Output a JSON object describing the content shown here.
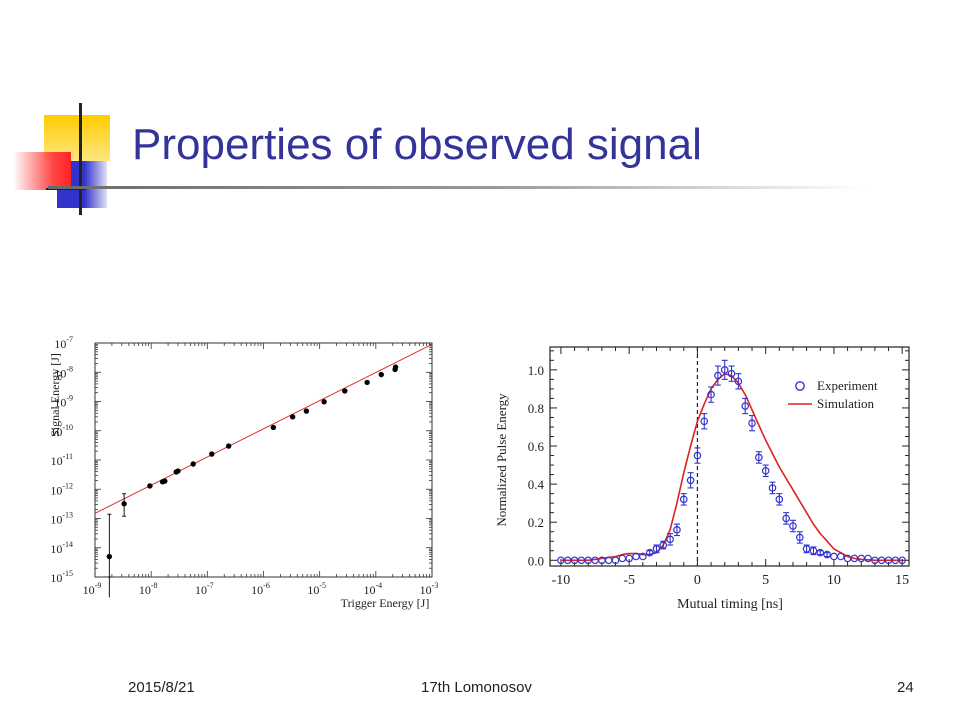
{
  "slide": {
    "title": "Properties of observed signal",
    "footer": {
      "date": "2015/8/21",
      "event": "17th Lomonosov",
      "page": "24"
    },
    "colors": {
      "title": "#333399",
      "deco_yellow": "#ffcc00",
      "deco_blue": "#3333cc",
      "deco_red": "#ff3333"
    }
  },
  "chart_data": [
    {
      "type": "scatter",
      "xlabel": "Trigger Energy [J]",
      "ylabel": "Signal Energy [J]",
      "xscale": "log",
      "yscale": "log",
      "xlim": [
        1e-09,
        0.001
      ],
      "ylim": [
        1e-15,
        1e-07
      ],
      "x_tick_labels": [
        "10-9",
        "10-8",
        "10-7",
        "10-6",
        "10-5",
        "10-4",
        "10-3"
      ],
      "y_tick_labels": [
        "10-15",
        "10-14",
        "10-13",
        "10-12",
        "10-11",
        "10-10",
        "10-9",
        "10-8",
        "10-7"
      ],
      "series": [
        {
          "kind": "points",
          "color": "#000000",
          "points": [
            {
              "x": 1.8e-09,
              "y": 5e-15,
              "y_err_low": 2e-16,
              "y_err_high": 1.4e-13
            },
            {
              "x": 3.3e-09,
              "y": 3.2e-13,
              "y_err_low": 1.2e-13,
              "y_err_high": 7e-13
            },
            {
              "x": 9.5e-09,
              "y": 1.3e-12
            },
            {
              "x": 1.6e-08,
              "y": 1.8e-12
            },
            {
              "x": 1.75e-08,
              "y": 1.9e-12
            },
            {
              "x": 2.8e-08,
              "y": 3.9e-12
            },
            {
              "x": 3e-08,
              "y": 4.2e-12
            },
            {
              "x": 5.6e-08,
              "y": 7.3e-12
            },
            {
              "x": 1.2e-07,
              "y": 1.6e-11
            },
            {
              "x": 2.4e-07,
              "y": 3e-11
            },
            {
              "x": 1.5e-06,
              "y": 1.3e-10
            },
            {
              "x": 3.3e-06,
              "y": 3e-10
            },
            {
              "x": 5.8e-06,
              "y": 4.7e-10
            },
            {
              "x": 1.2e-05,
              "y": 9.8e-10
            },
            {
              "x": 2.8e-05,
              "y": 2.3e-09
            },
            {
              "x": 7e-05,
              "y": 4.5e-09
            },
            {
              "x": 0.000125,
              "y": 8.3e-09
            },
            {
              "x": 0.00022,
              "y": 1.25e-08
            },
            {
              "x": 0.000225,
              "y": 1.5e-08
            }
          ]
        },
        {
          "kind": "line",
          "color": "#e03030",
          "points": [
            {
              "x": 1e-09,
              "y": 1.5e-13
            },
            {
              "x": 0.001,
              "y": 9e-08
            }
          ]
        }
      ]
    },
    {
      "type": "line",
      "xlabel": "Mutual timing [ns]",
      "ylabel": "Normalized Pulse Energy",
      "xlim": [
        -10.8,
        15.5
      ],
      "ylim": [
        -0.03,
        1.12
      ],
      "xticks": [
        -10,
        -5,
        0,
        5,
        10,
        15
      ],
      "x_tick_labels": [
        "-10",
        "-5",
        "0",
        "5",
        "10",
        "15"
      ],
      "yticks": [
        0.0,
        0.2,
        0.4,
        0.6,
        0.8,
        1.0
      ],
      "y_tick_labels": [
        "0.0",
        "0.2",
        "0.4",
        "0.6",
        "0.8",
        "1.0"
      ],
      "marker_line_x": 0,
      "legend": "top-right",
      "series": [
        {
          "name": "Experiment",
          "kind": "scatter",
          "color": "#3333cc",
          "x": [
            -10,
            -9.5,
            -9,
            -8.5,
            -8,
            -7.5,
            -7,
            -6.5,
            -6,
            -5.5,
            -5,
            -4.5,
            -4,
            -3.5,
            -3,
            -2.5,
            -2,
            -1.5,
            -1,
            -0.5,
            0,
            0.5,
            1,
            1.5,
            2,
            2.5,
            3,
            3.5,
            4,
            4.5,
            5,
            5.5,
            6,
            6.5,
            7,
            7.5,
            8,
            8.5,
            9,
            9.5,
            10,
            10.5,
            11,
            11.5,
            12,
            12.5,
            13,
            13.5,
            14,
            14.5,
            15
          ],
          "y": [
            0.0,
            0.0,
            0.0,
            0.0,
            0.0,
            0.0,
            0.0,
            0.0,
            0.0,
            0.01,
            0.01,
            0.02,
            0.02,
            0.04,
            0.06,
            0.08,
            0.11,
            0.16,
            0.32,
            0.42,
            0.55,
            0.73,
            0.87,
            0.97,
            1.0,
            0.98,
            0.94,
            0.81,
            0.72,
            0.54,
            0.47,
            0.38,
            0.32,
            0.22,
            0.18,
            0.12,
            0.06,
            0.05,
            0.04,
            0.03,
            0.02,
            0.02,
            0.01,
            0.01,
            0.01,
            0.01,
            0.0,
            0.0,
            0.0,
            0.0,
            0.0
          ],
          "y_err": [
            0.0,
            0.0,
            0.0,
            0.0,
            0.0,
            0.0,
            0.0,
            0.0,
            0.0,
            0.0,
            0.0,
            0.0,
            0.0,
            0.01,
            0.02,
            0.02,
            0.03,
            0.03,
            0.03,
            0.04,
            0.04,
            0.04,
            0.04,
            0.05,
            0.05,
            0.04,
            0.04,
            0.04,
            0.04,
            0.03,
            0.03,
            0.03,
            0.03,
            0.03,
            0.03,
            0.03,
            0.02,
            0.02,
            0.01,
            0.01,
            0.0,
            0.0,
            0.0,
            0.0,
            0.0,
            0.0,
            0.0,
            0.0,
            0.0,
            0.0,
            0.0
          ]
        },
        {
          "name": "Simulation",
          "kind": "line",
          "color": "#dd2222",
          "x": [
            -10,
            -9,
            -8,
            -7,
            -6,
            -5.5,
            -5,
            -4.5,
            -4,
            -3.5,
            -3,
            -2.5,
            -2,
            -1.5,
            -1,
            -0.5,
            0,
            0.5,
            1,
            1.5,
            2,
            2.5,
            3,
            3.5,
            4,
            4.5,
            5,
            5.5,
            6,
            6.5,
            7,
            7.5,
            8,
            8.5,
            9,
            9.5,
            10,
            10.5,
            11,
            11.5,
            12,
            13,
            14,
            15
          ],
          "y": [
            0.0,
            0.0,
            0.0,
            0.01,
            0.02,
            0.03,
            0.035,
            0.035,
            0.03,
            0.03,
            0.04,
            0.08,
            0.16,
            0.3,
            0.46,
            0.6,
            0.73,
            0.82,
            0.9,
            0.95,
            0.98,
            0.97,
            0.93,
            0.87,
            0.79,
            0.71,
            0.63,
            0.56,
            0.49,
            0.43,
            0.37,
            0.31,
            0.25,
            0.19,
            0.14,
            0.1,
            0.06,
            0.04,
            0.02,
            0.01,
            0.005,
            0.0,
            0.0,
            0.0
          ]
        }
      ]
    }
  ]
}
